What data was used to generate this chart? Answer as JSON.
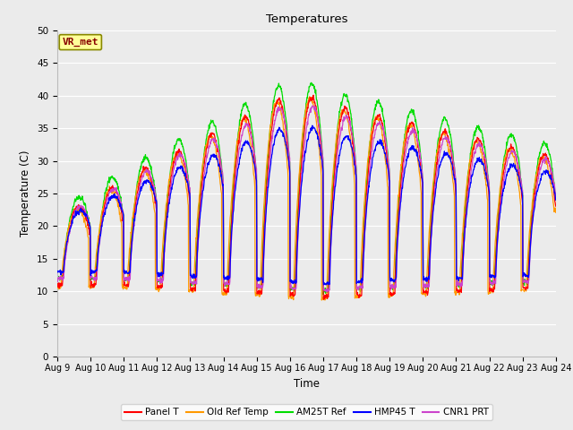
{
  "title": "Temperatures",
  "xlabel": "Time",
  "ylabel": "Temperature (C)",
  "ylim": [
    0,
    50
  ],
  "bg_color": "#ebebeb",
  "grid_color": "#ffffff",
  "annotation_text": "VR_met",
  "annotation_bg": "#ffff99",
  "annotation_border": "#888800",
  "annotation_text_color": "#880000",
  "series_colors": {
    "Panel T": "#ff0000",
    "Old Ref Temp": "#ff9900",
    "AM25T Ref": "#00dd00",
    "HMP45 T": "#0000ff",
    "CNR1 PRT": "#cc44cc"
  },
  "xtick_labels": [
    "Aug 9",
    "Aug 10",
    "Aug 11",
    "Aug 12",
    "Aug 13",
    "Aug 14",
    "Aug 15",
    "Aug 16",
    "Aug 17",
    "Aug 18",
    "Aug 19",
    "Aug 20",
    "Aug 21",
    "Aug 22",
    "Aug 23",
    "Aug 24"
  ],
  "yticks": [
    0,
    5,
    10,
    15,
    20,
    25,
    30,
    35,
    40,
    45,
    50
  ],
  "legend_labels": [
    "Panel T",
    "Old Ref Temp",
    "AM25T Ref",
    "HMP45 T",
    "CNR1 PRT"
  ]
}
